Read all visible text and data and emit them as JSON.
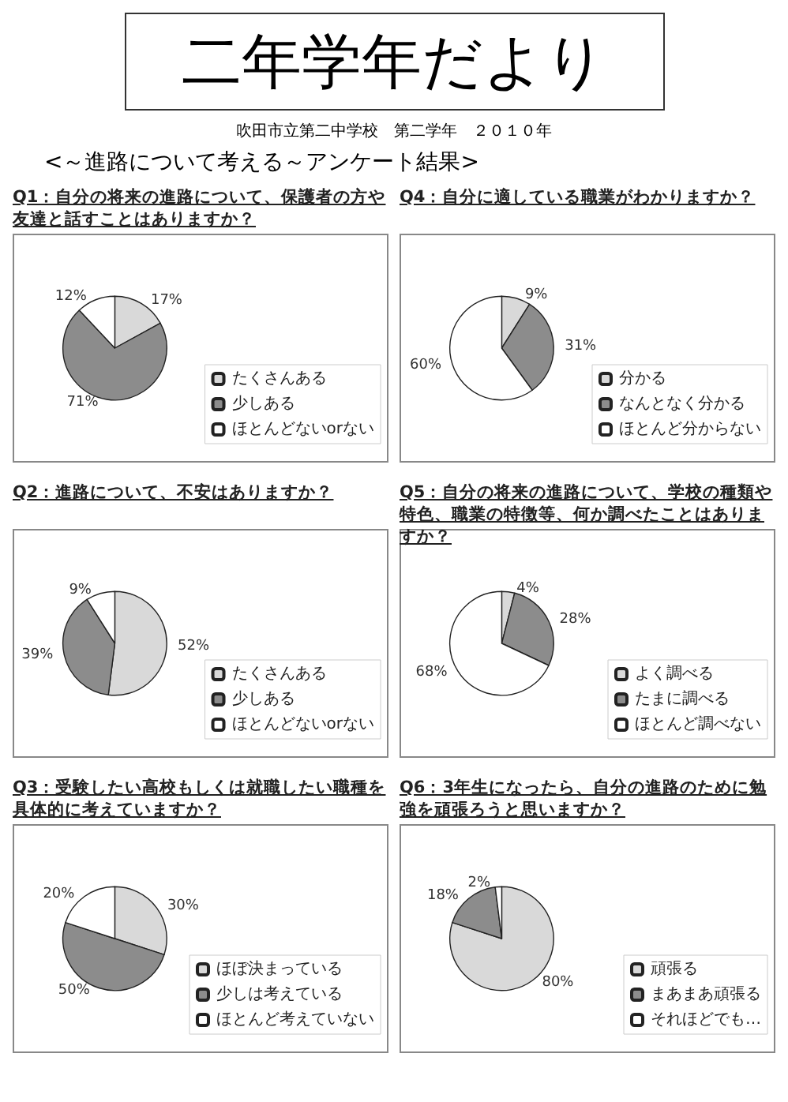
{
  "chart_data": [
    {
      "type": "other",
      "title": "二年学年だより",
      "subtitle": "吹田市立第二中学校　第二学年　２０１０年",
      "annotations": [
        "<～進路について考える～アンケート結果>"
      ]
    },
    {
      "type": "pie",
      "title": "Q1：自分の将来の進路について、保護者の方や友達と話すことはありますか？",
      "categories": [
        "たくさんある",
        "少しある",
        "ほとんどないorない"
      ],
      "values": [
        17,
        71,
        12
      ],
      "value_labels": [
        "17%",
        "71%",
        "12%"
      ],
      "colors": [
        "#d9d9d9",
        "#8c8c8c",
        "#ffffff"
      ],
      "legend": "right"
    },
    {
      "type": "pie",
      "title": "Q4：自分に適している職業がわかりますか？",
      "categories": [
        "分かる",
        "なんとなく分かる",
        "ほとんど分からない"
      ],
      "values": [
        9,
        31,
        60
      ],
      "value_labels": [
        "9%",
        "31%",
        "60%"
      ],
      "colors": [
        "#d9d9d9",
        "#8c8c8c",
        "#ffffff"
      ],
      "legend": "right"
    },
    {
      "type": "pie",
      "title": "Q2：進路について、不安はありますか？",
      "categories": [
        "たくさんある",
        "少しある",
        "ほとんどないorない"
      ],
      "values": [
        52,
        39,
        9
      ],
      "value_labels": [
        "52%",
        "39%",
        "9%"
      ],
      "colors": [
        "#d9d9d9",
        "#8c8c8c",
        "#ffffff"
      ],
      "legend": "right"
    },
    {
      "type": "pie",
      "title": "Q5：自分の将来の進路について、学校の種類や特色、職業の特徴等、何か調べたことはありますか？",
      "categories": [
        "よく調べる",
        "たまに調べる",
        "ほとんど調べない"
      ],
      "values": [
        4,
        28,
        68
      ],
      "value_labels": [
        "4%",
        "28%",
        "68%"
      ],
      "colors": [
        "#d9d9d9",
        "#8c8c8c",
        "#ffffff"
      ],
      "legend": "right"
    },
    {
      "type": "pie",
      "title": "Q3：受験したい高校もしくは就職したい職種を具体的に考えていますか？",
      "categories": [
        "ほぼ決まっている",
        "少しは考えている",
        "ほとんど考えていない"
      ],
      "values": [
        30,
        50,
        20
      ],
      "value_labels": [
        "30%",
        "50%",
        "20%"
      ],
      "colors": [
        "#d9d9d9",
        "#8c8c8c",
        "#ffffff"
      ],
      "legend": "right"
    },
    {
      "type": "pie",
      "title": "Q6：3年生になったら、自分の進路のために勉強を頑張ろうと思いますか？",
      "categories": [
        "頑張る",
        "まあまあ頑張る",
        "それほどでも…"
      ],
      "values": [
        80,
        18,
        2
      ],
      "value_labels": [
        "80%",
        "18%",
        "2%"
      ],
      "colors": [
        "#d9d9d9",
        "#8c8c8c",
        "#ffffff"
      ],
      "legend": "right"
    }
  ]
}
